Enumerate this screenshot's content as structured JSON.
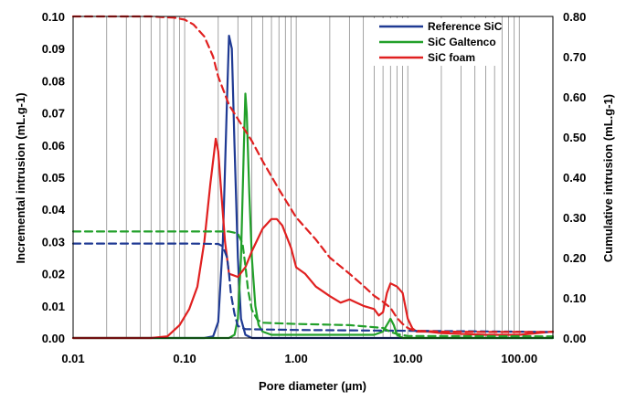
{
  "chart_data": {
    "type": "line",
    "title": "",
    "xlabel": "Pore diameter (µm)",
    "ylabel_left": "Incremental intrusion (mL.g-1)",
    "ylabel_right": "Cumulative intrusion (mL.g-1)",
    "x_scale": "log",
    "xlim": [
      0.01,
      200
    ],
    "ylim_left": [
      0,
      0.1
    ],
    "ylim_right": [
      0,
      0.8
    ],
    "x_ticks": [
      "0.01",
      "0.10",
      "1.00",
      "10.00",
      "100.00"
    ],
    "y_left_ticks": [
      "0.00",
      "0.01",
      "0.02",
      "0.03",
      "0.04",
      "0.05",
      "0.06",
      "0.07",
      "0.08",
      "0.09",
      "0.10"
    ],
    "y_right_ticks": [
      "0.00",
      "0.10",
      "0.20",
      "0.30",
      "0.40",
      "0.50",
      "0.60",
      "0.70",
      "0.80"
    ],
    "grid": "vertical log grid",
    "legend_position": "top-right",
    "series": [
      {
        "name": "Reference SiC",
        "color": "#1f3a93",
        "style": "solid",
        "axis": "left",
        "x": [
          0.01,
          0.15,
          0.18,
          0.2,
          0.22,
          0.24,
          0.25,
          0.265,
          0.28,
          0.3,
          0.32,
          0.35,
          0.4,
          1,
          10,
          200
        ],
        "y": [
          0,
          0,
          0.0005,
          0.005,
          0.03,
          0.075,
          0.094,
          0.09,
          0.06,
          0.025,
          0.006,
          0.001,
          0,
          0,
          0,
          0
        ]
      },
      {
        "name": "SiC Galtenco",
        "color": "#22a02a",
        "style": "solid",
        "axis": "left",
        "x": [
          0.01,
          0.25,
          0.28,
          0.3,
          0.32,
          0.34,
          0.35,
          0.36,
          0.38,
          0.4,
          0.43,
          0.46,
          0.5,
          0.6,
          1,
          5,
          6,
          7,
          7.5,
          8,
          9,
          200
        ],
        "y": [
          0,
          0,
          0.001,
          0.006,
          0.025,
          0.06,
          0.076,
          0.07,
          0.045,
          0.025,
          0.01,
          0.004,
          0.002,
          0.001,
          0.001,
          0.001,
          0.002,
          0.006,
          0.004,
          0.001,
          0,
          0
        ]
      },
      {
        "name": "SiC foam",
        "color": "#e02020",
        "style": "solid",
        "axis": "left",
        "x": [
          0.01,
          0.05,
          0.07,
          0.09,
          0.11,
          0.13,
          0.15,
          0.17,
          0.19,
          0.2,
          0.21,
          0.23,
          0.25,
          0.3,
          0.35,
          0.4,
          0.5,
          0.6,
          0.67,
          0.75,
          0.9,
          1.0,
          1.2,
          1.5,
          2,
          2.5,
          3,
          4,
          5,
          5.5,
          6,
          6.5,
          7,
          8,
          9,
          10,
          11,
          12,
          15,
          20,
          50,
          100,
          200
        ],
        "y": [
          0,
          0,
          0.0005,
          0.004,
          0.009,
          0.016,
          0.03,
          0.048,
          0.062,
          0.058,
          0.048,
          0.03,
          0.02,
          0.019,
          0.022,
          0.027,
          0.034,
          0.037,
          0.037,
          0.035,
          0.028,
          0.022,
          0.02,
          0.016,
          0.013,
          0.011,
          0.012,
          0.01,
          0.009,
          0.007,
          0.008,
          0.014,
          0.017,
          0.016,
          0.014,
          0.006,
          0.003,
          0.002,
          0.002,
          0.0015,
          0.001,
          0.001,
          0.002
        ]
      },
      {
        "name": "",
        "color": "#1f3a93",
        "style": "dashed",
        "axis": "right",
        "x": [
          0.01,
          0.1,
          0.2,
          0.22,
          0.24,
          0.25,
          0.26,
          0.28,
          0.3,
          0.35,
          1,
          10,
          200
        ],
        "y": [
          0.235,
          0.235,
          0.234,
          0.228,
          0.2,
          0.16,
          0.11,
          0.06,
          0.03,
          0.022,
          0.02,
          0.018,
          0.015
        ]
      },
      {
        "name": "",
        "color": "#22a02a",
        "style": "dashed",
        "axis": "right",
        "x": [
          0.01,
          0.1,
          0.25,
          0.3,
          0.33,
          0.35,
          0.37,
          0.4,
          0.45,
          0.5,
          1,
          3,
          6,
          7,
          8,
          10,
          200
        ],
        "y": [
          0.265,
          0.265,
          0.265,
          0.26,
          0.235,
          0.18,
          0.12,
          0.07,
          0.045,
          0.038,
          0.035,
          0.032,
          0.025,
          0.015,
          0.01,
          0.005,
          0.004
        ]
      },
      {
        "name": "",
        "color": "#e02020",
        "style": "dashed",
        "axis": "right",
        "x": [
          0.01,
          0.05,
          0.08,
          0.1,
          0.12,
          0.15,
          0.18,
          0.2,
          0.25,
          0.3,
          0.4,
          0.5,
          0.7,
          1,
          1.5,
          2,
          3,
          4,
          5,
          6,
          7,
          8,
          9,
          10,
          11,
          12,
          15,
          20,
          50,
          100,
          200
        ],
        "y": [
          0.8,
          0.8,
          0.797,
          0.792,
          0.78,
          0.75,
          0.7,
          0.65,
          0.58,
          0.545,
          0.49,
          0.44,
          0.37,
          0.3,
          0.245,
          0.2,
          0.16,
          0.13,
          0.105,
          0.09,
          0.075,
          0.05,
          0.035,
          0.025,
          0.02,
          0.018,
          0.017,
          0.016,
          0.015,
          0.015,
          0.015
        ]
      }
    ]
  }
}
